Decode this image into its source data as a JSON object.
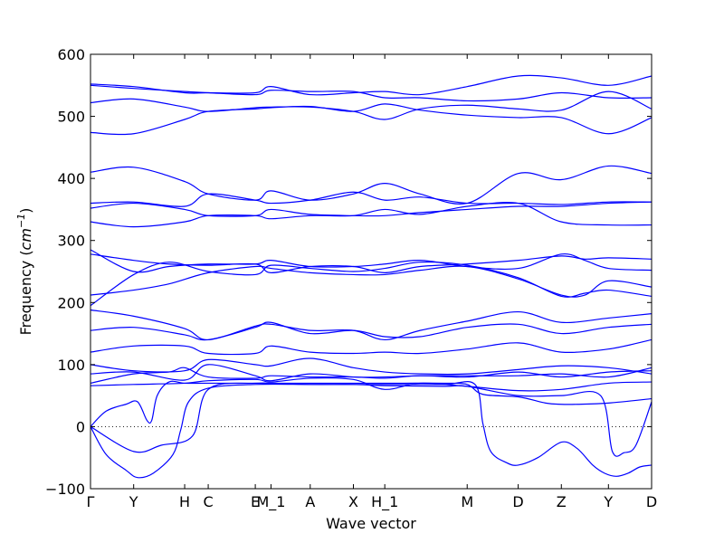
{
  "chart_data": {
    "type": "line",
    "xlabel": "Wave vector",
    "ylabel": "Frequency (cm⁻¹)",
    "ylabel_parts": {
      "text": "Frequency (",
      "unit_base": "cm",
      "unit_exp": "−1",
      "close": ")"
    },
    "ylim": [
      -100,
      600
    ],
    "yticks": [
      -100,
      0,
      100,
      200,
      300,
      400,
      500,
      600
    ],
    "grid": false,
    "zero_line": {
      "y": 0,
      "style": "dotted",
      "color": "#000000"
    },
    "line_color": "#0000ff",
    "x_points": [
      {
        "label": "Γ",
        "x": 0
      },
      {
        "label": "Y",
        "x": 0.55
      },
      {
        "label": "H",
        "x": 1.2
      },
      {
        "label": "C",
        "x": 1.5
      },
      {
        "label": "E",
        "x": 2.1
      },
      {
        "label": "M_1",
        "x": 2.3
      },
      {
        "label": "A",
        "x": 2.8
      },
      {
        "label": "X",
        "x": 3.35
      },
      {
        "label": "H_1",
        "x": 3.75
      },
      {
        "label": "M",
        "x": 4.8
      },
      {
        "label": "D",
        "x": 5.45
      },
      {
        "label": "Z",
        "x": 6.0
      },
      {
        "label": "Y",
        "x": 6.6
      },
      {
        "label": "D",
        "x": 7.15
      }
    ],
    "xlim": [
      0,
      7.15
    ],
    "series": [
      {
        "x": [
          0,
          0.2,
          0.45,
          0.6,
          0.72,
          0.78,
          0.85,
          1.0,
          1.2,
          1.5,
          2.1,
          2.8,
          3.35,
          3.75,
          4.0,
          4.5,
          4.8,
          5.0,
          5.45,
          5.8,
          6.0,
          6.2,
          6.6,
          7.15
        ],
        "y": [
          0,
          25,
          36,
          40,
          10,
          10,
          50,
          72,
          70,
          70,
          70,
          70,
          70,
          70,
          70,
          70,
          68,
          52,
          48,
          38,
          36,
          36,
          38,
          45
        ]
      },
      {
        "x": [
          0,
          0.2,
          0.45,
          0.6,
          0.8,
          1.05,
          1.15,
          1.25,
          1.5,
          2.1,
          2.8,
          3.35,
          3.75,
          4.5,
          4.9,
          5.0,
          5.1,
          5.3,
          5.45,
          5.7,
          6.0,
          6.2,
          6.4,
          6.55,
          6.7,
          6.85,
          7.0,
          7.15
        ],
        "y": [
          0,
          -45,
          -70,
          -82,
          -75,
          -45,
          -5,
          40,
          62,
          68,
          68,
          68,
          68,
          68,
          68,
          5,
          -40,
          -58,
          -62,
          -50,
          -25,
          -35,
          -62,
          -75,
          -80,
          -75,
          -65,
          -62
        ]
      },
      {
        "x": [
          0,
          0.55,
          0.9,
          1.3,
          1.5,
          2.1,
          2.8,
          3.35,
          3.75,
          4.5,
          4.8,
          5.45,
          6.0,
          6.5,
          6.65,
          6.8,
          6.95,
          7.15
        ],
        "y": [
          0,
          -40,
          -30,
          -15,
          60,
          70,
          68,
          68,
          66,
          65,
          65,
          50,
          50,
          50,
          -40,
          -42,
          -30,
          40
        ]
      },
      {
        "x": [
          0,
          0.55,
          1.2,
          1.5,
          2.1,
          2.3,
          2.8,
          3.35,
          3.75,
          4.2,
          4.8,
          5.45,
          6.0,
          6.6,
          7.15
        ],
        "y": [
          66,
          68,
          70,
          74,
          76,
          72,
          78,
          76,
          60,
          70,
          65,
          58,
          60,
          70,
          72
        ]
      },
      {
        "x": [
          0,
          0.55,
          1.0,
          1.2,
          1.5,
          2.1,
          2.3,
          2.8,
          3.35,
          3.75,
          4.2,
          4.8,
          5.45,
          6.0,
          6.6,
          7.15
        ],
        "y": [
          70,
          85,
          88,
          95,
          80,
          78,
          82,
          80,
          80,
          78,
          82,
          80,
          88,
          80,
          88,
          90
        ]
      },
      {
        "x": [
          0,
          0.55,
          1.2,
          1.5,
          2.1,
          2.3,
          2.8,
          3.35,
          3.75,
          4.2,
          4.8,
          5.45,
          6.0,
          6.6,
          7.15
        ],
        "y": [
          85,
          88,
          75,
          100,
          82,
          74,
          85,
          80,
          80,
          82,
          82,
          82,
          85,
          80,
          95
        ]
      },
      {
        "x": [
          0,
          0.55,
          1.2,
          1.5,
          2.1,
          2.3,
          2.8,
          3.35,
          3.75,
          4.2,
          4.8,
          5.45,
          6.0,
          6.6,
          7.15
        ],
        "y": [
          100,
          90,
          90,
          108,
          100,
          98,
          110,
          95,
          88,
          85,
          85,
          92,
          98,
          95,
          85
        ]
      },
      {
        "x": [
          0,
          0.55,
          1.2,
          1.5,
          2.1,
          2.3,
          2.8,
          3.35,
          3.75,
          4.2,
          4.8,
          5.45,
          6.0,
          6.6,
          7.15
        ],
        "y": [
          120,
          130,
          130,
          118,
          118,
          130,
          120,
          118,
          120,
          118,
          125,
          135,
          120,
          125,
          140
        ]
      },
      {
        "x": [
          0,
          0.55,
          1.2,
          1.5,
          2.1,
          2.3,
          2.8,
          3.35,
          3.75,
          4.2,
          4.8,
          5.45,
          6.0,
          6.6,
          7.15
        ],
        "y": [
          155,
          160,
          148,
          140,
          160,
          168,
          150,
          155,
          145,
          145,
          160,
          165,
          150,
          160,
          165
        ]
      },
      {
        "x": [
          0,
          0.55,
          1.2,
          1.5,
          2.1,
          2.3,
          2.8,
          3.35,
          3.75,
          4.2,
          4.8,
          5.45,
          6.0,
          6.6,
          7.15
        ],
        "y": [
          188,
          178,
          158,
          140,
          162,
          165,
          155,
          155,
          140,
          155,
          170,
          185,
          168,
          175,
          182
        ]
      },
      {
        "x": [
          0,
          0.55,
          1.0,
          1.5,
          2.1,
          2.3,
          2.8,
          3.35,
          3.75,
          4.2,
          4.8,
          5.45,
          6.0,
          6.3,
          6.6,
          7.15
        ],
        "y": [
          195,
          245,
          265,
          250,
          245,
          260,
          255,
          250,
          255,
          265,
          260,
          240,
          210,
          215,
          220,
          210
        ]
      },
      {
        "x": [
          0,
          0.55,
          1.0,
          1.5,
          2.1,
          2.3,
          2.8,
          3.35,
          3.75,
          4.2,
          4.8,
          5.45,
          6.0,
          6.3,
          6.6,
          7.15
        ],
        "y": [
          212,
          220,
          230,
          248,
          258,
          255,
          248,
          245,
          245,
          252,
          258,
          238,
          212,
          212,
          235,
          225
        ]
      },
      {
        "x": [
          0,
          0.55,
          1.0,
          1.5,
          2.1,
          2.3,
          2.8,
          3.35,
          3.75,
          4.2,
          4.8,
          5.45,
          6.0,
          6.3,
          6.6,
          7.15
        ],
        "y": [
          285,
          250,
          258,
          262,
          262,
          268,
          258,
          258,
          262,
          268,
          258,
          255,
          278,
          268,
          255,
          252
        ]
      },
      {
        "x": [
          0,
          0.55,
          1.0,
          1.5,
          2.1,
          2.3,
          2.8,
          3.35,
          3.75,
          4.2,
          4.8,
          5.45,
          6.0,
          6.3,
          6.6,
          7.15
        ],
        "y": [
          278,
          268,
          262,
          260,
          262,
          248,
          258,
          258,
          248,
          258,
          262,
          268,
          275,
          270,
          272,
          270
        ]
      },
      {
        "x": [
          0,
          0.55,
          1.2,
          1.5,
          2.1,
          2.3,
          2.8,
          3.35,
          3.75,
          4.2,
          4.8,
          5.45,
          6.0,
          6.6,
          7.15
        ],
        "y": [
          330,
          322,
          330,
          340,
          340,
          335,
          340,
          340,
          350,
          342,
          355,
          360,
          330,
          325,
          325
        ]
      },
      {
        "x": [
          0,
          0.55,
          1.2,
          1.5,
          2.1,
          2.3,
          2.8,
          3.35,
          3.75,
          4.2,
          4.8,
          5.45,
          6.0,
          6.6,
          7.15
        ],
        "y": [
          352,
          360,
          350,
          340,
          340,
          350,
          342,
          340,
          340,
          345,
          350,
          355,
          355,
          360,
          362
        ]
      },
      {
        "x": [
          0,
          0.55,
          1.2,
          1.5,
          2.1,
          2.3,
          2.8,
          3.35,
          3.75,
          4.2,
          4.8,
          5.45,
          6.0,
          6.6,
          7.15
        ],
        "y": [
          360,
          362,
          355,
          375,
          365,
          360,
          365,
          378,
          365,
          370,
          360,
          360,
          358,
          362,
          362
        ]
      },
      {
        "x": [
          0,
          0.55,
          1.2,
          1.5,
          2.1,
          2.3,
          2.8,
          3.35,
          3.75,
          4.2,
          4.8,
          5.45,
          6.0,
          6.6,
          7.15
        ],
        "y": [
          410,
          418,
          395,
          375,
          365,
          380,
          365,
          375,
          392,
          375,
          360,
          408,
          398,
          420,
          408
        ]
      },
      {
        "x": [
          0,
          0.55,
          1.2,
          1.5,
          2.1,
          2.3,
          2.8,
          3.35,
          3.75,
          4.2,
          4.8,
          5.45,
          6.0,
          6.6,
          7.15
        ],
        "y": [
          474,
          472,
          495,
          508,
          512,
          514,
          516,
          508,
          520,
          510,
          502,
          498,
          498,
          472,
          498
        ]
      },
      {
        "x": [
          0,
          0.55,
          1.2,
          1.5,
          2.1,
          2.3,
          2.8,
          3.35,
          3.75,
          4.2,
          4.8,
          5.45,
          6.0,
          6.6,
          7.15
        ],
        "y": [
          522,
          528,
          515,
          508,
          514,
          515,
          515,
          508,
          495,
          512,
          518,
          512,
          510,
          540,
          512
        ]
      },
      {
        "x": [
          0,
          0.55,
          1.2,
          1.5,
          2.1,
          2.3,
          2.8,
          3.35,
          3.75,
          4.2,
          4.8,
          5.45,
          6.0,
          6.6,
          7.15
        ],
        "y": [
          550,
          545,
          540,
          538,
          535,
          542,
          540,
          540,
          530,
          530,
          525,
          528,
          538,
          530,
          530
        ]
      },
      {
        "x": [
          0,
          0.55,
          1.2,
          1.5,
          2.1,
          2.3,
          2.8,
          3.35,
          3.75,
          4.2,
          4.8,
          5.45,
          6.0,
          6.6,
          7.15
        ],
        "y": [
          552,
          548,
          538,
          538,
          538,
          548,
          535,
          538,
          540,
          535,
          548,
          565,
          562,
          550,
          565
        ]
      }
    ]
  }
}
